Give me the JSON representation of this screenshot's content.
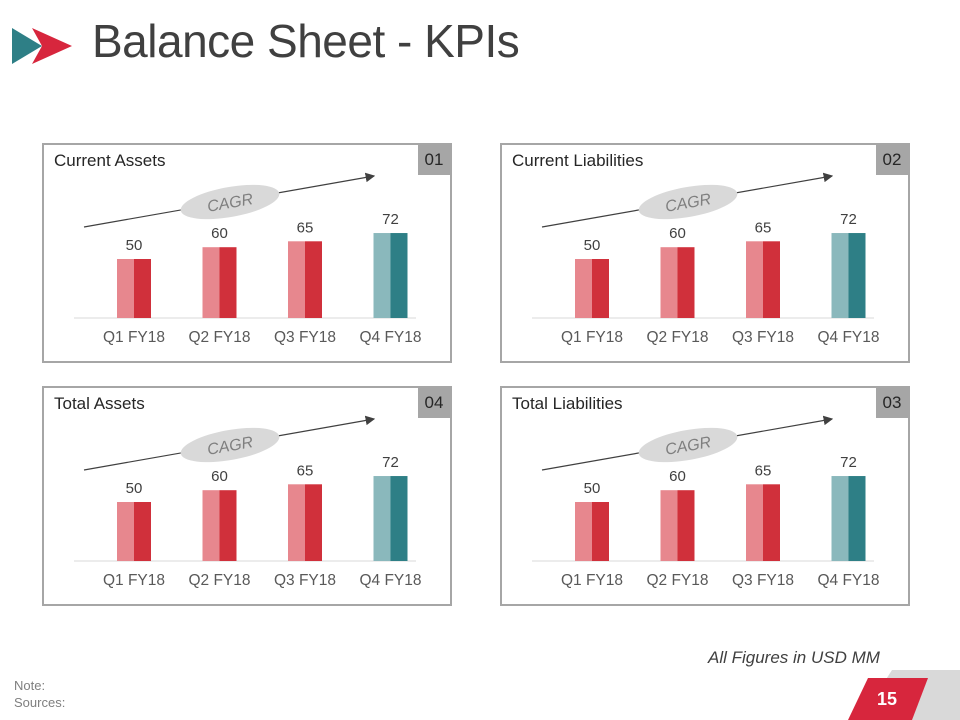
{
  "page": {
    "title": "Balance Sheet - KPIs",
    "unit_note": "All Figures in USD MM",
    "note_label": "Note:",
    "sources_label": "Sources:",
    "page_number": "15"
  },
  "colors": {
    "red_dark": "#d0303b",
    "red_light": "#e7878e",
    "teal_dark": "#2e7f86",
    "teal_light": "#8ab8bc",
    "panel_border": "#a6a6a6",
    "badge_gray": "#a6a6a6",
    "cagr_ellipse": "#d9d9d9",
    "accent_red": "#d7263d"
  },
  "panels": [
    {
      "title": "Current Assets",
      "number": "01",
      "cagr_label": "CAGR"
    },
    {
      "title": "Current Liabilities",
      "number": "02",
      "cagr_label": "CAGR"
    },
    {
      "title": "Total Assets",
      "number": "04",
      "cagr_label": "CAGR"
    },
    {
      "title": "Total Liabilities",
      "number": "03",
      "cagr_label": "CAGR"
    }
  ],
  "chart_data": [
    {
      "type": "bar",
      "title": "Current Assets",
      "categories": [
        "Q1 FY18",
        "Q2 FY18",
        "Q3 FY18",
        "Q4 FY18"
      ],
      "values": [
        50,
        60,
        65,
        72
      ],
      "highlight_index": 3,
      "annotation": "CAGR"
    },
    {
      "type": "bar",
      "title": "Current Liabilities",
      "categories": [
        "Q1 FY18",
        "Q2 FY18",
        "Q3 FY18",
        "Q4 FY18"
      ],
      "values": [
        50,
        60,
        65,
        72
      ],
      "highlight_index": 3,
      "annotation": "CAGR"
    },
    {
      "type": "bar",
      "title": "Total Assets",
      "categories": [
        "Q1 FY18",
        "Q2 FY18",
        "Q3 FY18",
        "Q4 FY18"
      ],
      "values": [
        50,
        60,
        65,
        72
      ],
      "highlight_index": 3,
      "annotation": "CAGR"
    },
    {
      "type": "bar",
      "title": "Total Liabilities",
      "categories": [
        "Q1 FY18",
        "Q2 FY18",
        "Q3 FY18",
        "Q4 FY18"
      ],
      "values": [
        50,
        60,
        65,
        72
      ],
      "highlight_index": 3,
      "annotation": "CAGR"
    }
  ]
}
